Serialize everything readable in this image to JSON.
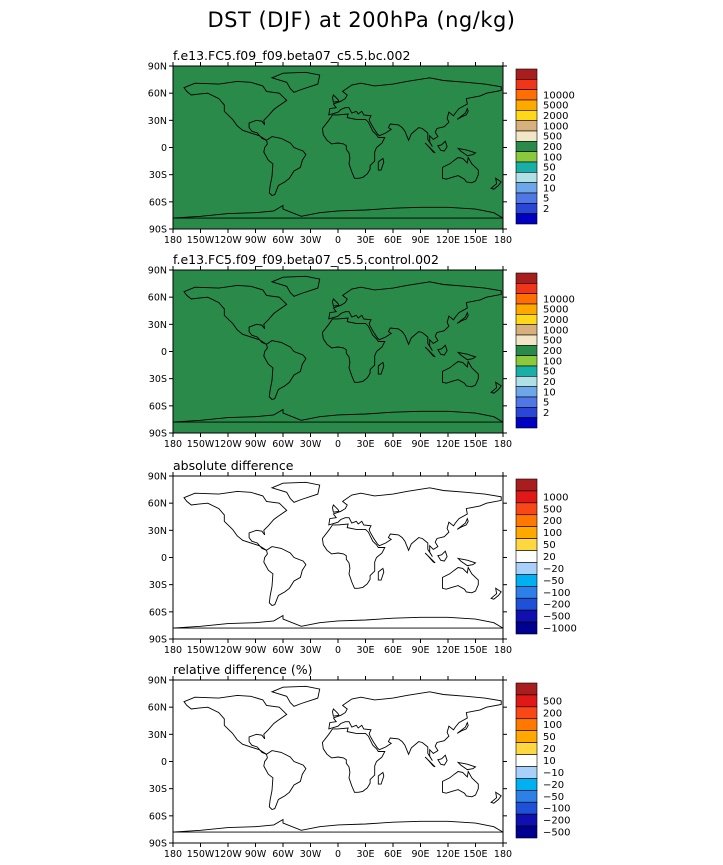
{
  "main_title": "DST (DJF) at 200hPa (ng/kg)",
  "colors": {
    "abs_scale": [
      "#0000c0",
      "#2a46d6",
      "#4f78e6",
      "#6ea6ea",
      "#aee0e6",
      "#18b0a6",
      "#8ac83c",
      "#2a8a4a",
      "#f3e6c6",
      "#d8b07c",
      "#ffd818",
      "#ffa800",
      "#ff6e00",
      "#f03618",
      "#a81e1e"
    ],
    "diff_scale": [
      "#000090",
      "#1010b0",
      "#1f50d8",
      "#2c80e8",
      "#00b0f0",
      "#a8d0f8",
      "#ffffff",
      "#ffd840",
      "#ffa800",
      "#ff7800",
      "#f84818",
      "#e01818",
      "#a81e1e"
    ]
  },
  "chart_data": [
    {
      "type": "heatmap",
      "title": "f.e13.FC5.f09_f09.beta07_c5.5.bc.002",
      "variable": "DST",
      "units": "ng/kg",
      "xlim": [
        -180,
        180
      ],
      "ylim": [
        -90,
        90
      ],
      "x_tick_labels": [
        "180",
        "150W",
        "120W",
        "90W",
        "60W",
        "30W",
        "0",
        "30E",
        "60E",
        "90E",
        "120E",
        "150E",
        "180"
      ],
      "y_tick_labels": [
        "90N",
        "60N",
        "30N",
        "0",
        "30S",
        "60S",
        "90S"
      ],
      "colorbar_levels": [
        "10000",
        "5000",
        "2000",
        "1000",
        "500",
        "200",
        "100",
        "50",
        "20",
        "10",
        "5",
        "2"
      ]
    },
    {
      "type": "heatmap",
      "title": "f.e13.FC5.f09_f09.beta07_c5.5.control.002",
      "variable": "DST",
      "units": "ng/kg",
      "xlim": [
        -180,
        180
      ],
      "ylim": [
        -90,
        90
      ],
      "x_tick_labels": [
        "180",
        "150W",
        "120W",
        "90W",
        "60W",
        "30W",
        "0",
        "30E",
        "60E",
        "90E",
        "120E",
        "150E",
        "180"
      ],
      "y_tick_labels": [
        "90N",
        "60N",
        "30N",
        "0",
        "30S",
        "60S",
        "90S"
      ],
      "colorbar_levels": [
        "10000",
        "5000",
        "2000",
        "1000",
        "500",
        "200",
        "100",
        "50",
        "20",
        "10",
        "5",
        "2"
      ]
    },
    {
      "type": "heatmap",
      "title": "absolute difference",
      "xlim": [
        -180,
        180
      ],
      "ylim": [
        -90,
        90
      ],
      "x_tick_labels": [
        "180",
        "150W",
        "120W",
        "90W",
        "60W",
        "30W",
        "0",
        "30E",
        "60E",
        "90E",
        "120E",
        "150E",
        "180"
      ],
      "y_tick_labels": [
        "90N",
        "60N",
        "30N",
        "0",
        "30S",
        "60S",
        "90S"
      ],
      "colorbar_levels": [
        "1000",
        "500",
        "200",
        "100",
        "50",
        "20",
        "−20",
        "−50",
        "−100",
        "−200",
        "−500",
        "−1000"
      ]
    },
    {
      "type": "heatmap",
      "title": "relative difference (%)",
      "xlim": [
        -180,
        180
      ],
      "ylim": [
        -90,
        90
      ],
      "x_tick_labels": [
        "180",
        "150W",
        "120W",
        "90W",
        "60W",
        "30W",
        "0",
        "30E",
        "60E",
        "90E",
        "120E",
        "150E",
        "180"
      ],
      "y_tick_labels": [
        "90N",
        "60N",
        "30N",
        "0",
        "30S",
        "60S",
        "90S"
      ],
      "colorbar_levels": [
        "500",
        "200",
        "100",
        "50",
        "20",
        "10",
        "−10",
        "−20",
        "−50",
        "−100",
        "−200",
        "−500"
      ]
    }
  ]
}
